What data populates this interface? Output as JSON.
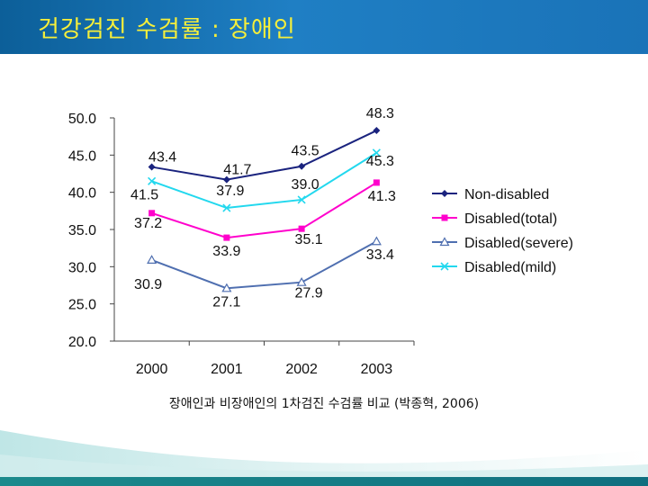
{
  "header": {
    "title": "건강검진 수검률 : 장애인"
  },
  "caption": "장애인과 비장애인의 1차검진 수검률 비교 (박종혁, 2006)",
  "colors": {
    "non_disabled": "#1a237e",
    "disabled_total": "#ff00cc",
    "disabled_severe": "#4f6fb0",
    "disabled_mild": "#22d8ee"
  },
  "chart_data": {
    "type": "line",
    "title": "",
    "xlabel": "",
    "ylabel": "",
    "categories": [
      "2000",
      "2001",
      "2002",
      "2003"
    ],
    "ylim": [
      20.0,
      50.0
    ],
    "y_ticks": [
      "20.0",
      "25.0",
      "30.0",
      "35.0",
      "40.0",
      "45.0",
      "50.0"
    ],
    "legend_position": "right",
    "series": [
      {
        "name": "Non-disabled",
        "values": [
          43.4,
          41.7,
          43.5,
          48.3
        ],
        "labels": [
          "43.4",
          "41.7",
          "43.5",
          "48.3"
        ],
        "marker": "diamond",
        "color": "#1a237e"
      },
      {
        "name": "Disabled(total)",
        "values": [
          37.2,
          33.9,
          35.1,
          41.3
        ],
        "labels": [
          "37.2",
          "33.9",
          "35.1",
          "41.3"
        ],
        "marker": "square",
        "color": "#ff00cc"
      },
      {
        "name": "Disabled(severe)",
        "values": [
          30.9,
          27.1,
          27.9,
          33.4
        ],
        "labels": [
          "30.9",
          "27.1",
          "27.9",
          "33.4"
        ],
        "marker": "triangle",
        "color": "#4f6fb0"
      },
      {
        "name": "Disabled(mild)",
        "values": [
          41.5,
          37.9,
          39.0,
          45.3
        ],
        "labels": [
          "41.5",
          "37.9",
          "39.0",
          "45.3"
        ],
        "marker": "x",
        "color": "#22d8ee"
      }
    ]
  }
}
